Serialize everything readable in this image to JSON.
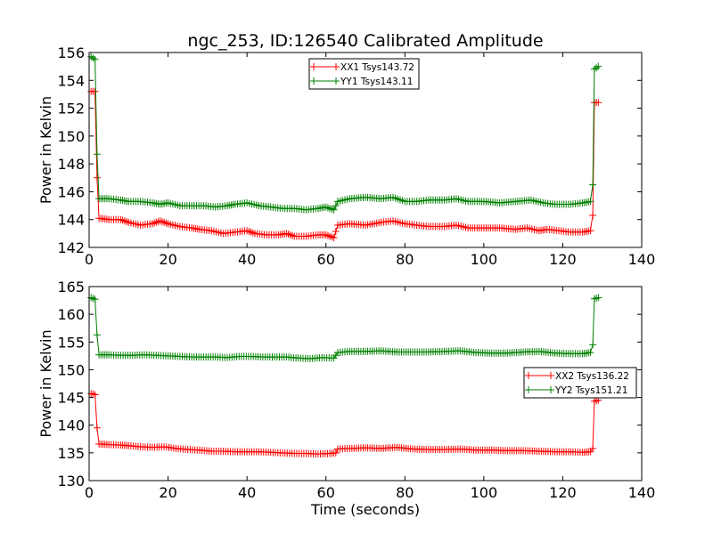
{
  "chart_data": [
    {
      "type": "line",
      "title": "ngc_253, ID:126540 Calibrated Amplitude",
      "xlabel": "",
      "ylabel": "Power in Kelvin",
      "xlim": [
        0,
        140
      ],
      "ylim": [
        142,
        156
      ],
      "xticks": [
        0,
        20,
        40,
        60,
        80,
        100,
        120,
        140
      ],
      "yticks": [
        142,
        144,
        146,
        148,
        150,
        152,
        154,
        156
      ],
      "legend_position": "top-center",
      "grid": false,
      "marker": "+",
      "series": [
        {
          "name": "XX1 Tsys143.72",
          "color": "#ff0000",
          "points": [
            [
              0.5,
              153.2
            ],
            [
              1.5,
              153.2
            ],
            [
              2.0,
              147.0
            ],
            [
              2.5,
              144.1
            ],
            [
              5,
              144.0
            ],
            [
              8,
              144.0
            ],
            [
              10,
              143.8
            ],
            [
              13,
              143.6
            ],
            [
              16,
              143.7
            ],
            [
              18,
              143.9
            ],
            [
              20,
              143.7
            ],
            [
              23,
              143.5
            ],
            [
              26,
              143.4
            ],
            [
              28,
              143.3
            ],
            [
              31,
              143.2
            ],
            [
              34,
              143.0
            ],
            [
              37,
              143.1
            ],
            [
              40,
              143.2
            ],
            [
              42,
              143.0
            ],
            [
              45,
              142.9
            ],
            [
              48,
              142.9
            ],
            [
              50,
              143.0
            ],
            [
              52,
              142.8
            ],
            [
              55,
              142.8
            ],
            [
              58,
              142.9
            ],
            [
              60,
              142.9
            ],
            [
              62,
              142.7
            ],
            [
              63,
              143.6
            ],
            [
              66,
              143.7
            ],
            [
              70,
              143.6
            ],
            [
              74,
              143.8
            ],
            [
              77,
              143.9
            ],
            [
              80,
              143.7
            ],
            [
              83,
              143.6
            ],
            [
              86,
              143.5
            ],
            [
              90,
              143.5
            ],
            [
              93,
              143.6
            ],
            [
              96,
              143.4
            ],
            [
              100,
              143.4
            ],
            [
              104,
              143.4
            ],
            [
              108,
              143.3
            ],
            [
              111,
              143.4
            ],
            [
              114,
              143.2
            ],
            [
              116,
              143.3
            ],
            [
              119,
              143.2
            ],
            [
              122,
              143.1
            ],
            [
              125,
              143.1
            ],
            [
              127,
              143.2
            ],
            [
              127.6,
              144.3
            ],
            [
              128,
              152.4
            ],
            [
              129,
              152.4
            ]
          ]
        },
        {
          "name": "YY1 Tsys143.11",
          "color": "#008000",
          "points": [
            [
              0.5,
              155.7
            ],
            [
              1.5,
              155.5
            ],
            [
              2.0,
              148.7
            ],
            [
              2.5,
              145.5
            ],
            [
              5,
              145.5
            ],
            [
              8,
              145.4
            ],
            [
              10,
              145.3
            ],
            [
              13,
              145.3
            ],
            [
              16,
              145.2
            ],
            [
              18,
              145.1
            ],
            [
              20,
              145.2
            ],
            [
              23,
              145.0
            ],
            [
              26,
              145.0
            ],
            [
              29,
              145.0
            ],
            [
              32,
              144.9
            ],
            [
              35,
              145.0
            ],
            [
              37,
              145.1
            ],
            [
              40,
              145.2
            ],
            [
              43,
              145.0
            ],
            [
              46,
              144.9
            ],
            [
              49,
              144.8
            ],
            [
              52,
              144.8
            ],
            [
              55,
              144.7
            ],
            [
              58,
              144.8
            ],
            [
              60,
              144.9
            ],
            [
              62,
              144.7
            ],
            [
              63,
              145.3
            ],
            [
              66,
              145.5
            ],
            [
              70,
              145.6
            ],
            [
              74,
              145.5
            ],
            [
              77,
              145.6
            ],
            [
              80,
              145.3
            ],
            [
              83,
              145.3
            ],
            [
              86,
              145.4
            ],
            [
              90,
              145.4
            ],
            [
              93,
              145.5
            ],
            [
              96,
              145.3
            ],
            [
              100,
              145.3
            ],
            [
              104,
              145.2
            ],
            [
              108,
              145.3
            ],
            [
              112,
              145.4
            ],
            [
              115,
              145.2
            ],
            [
              118,
              145.1
            ],
            [
              122,
              145.1
            ],
            [
              125,
              145.2
            ],
            [
              127,
              145.3
            ],
            [
              127.6,
              146.5
            ],
            [
              128,
              154.8
            ],
            [
              129,
              155.0
            ]
          ]
        }
      ]
    },
    {
      "type": "line",
      "title": "",
      "xlabel": "Time (seconds)",
      "ylabel": "Power in Kelvin",
      "xlim": [
        0,
        140
      ],
      "ylim": [
        130,
        165
      ],
      "xticks": [
        0,
        20,
        40,
        60,
        80,
        100,
        120,
        140
      ],
      "yticks": [
        130,
        135,
        140,
        145,
        150,
        155,
        160,
        165
      ],
      "legend_position": "center-right",
      "grid": false,
      "marker": "+",
      "series": [
        {
          "name": "XX2 Tsys136.22",
          "color": "#ff0000",
          "points": [
            [
              0.5,
              145.7
            ],
            [
              1.5,
              145.5
            ],
            [
              2.0,
              139.5
            ],
            [
              2.5,
              136.6
            ],
            [
              5,
              136.5
            ],
            [
              8,
              136.4
            ],
            [
              10,
              136.3
            ],
            [
              13,
              136.1
            ],
            [
              16,
              136.0
            ],
            [
              19,
              136.1
            ],
            [
              22,
              135.8
            ],
            [
              25,
              135.6
            ],
            [
              28,
              135.5
            ],
            [
              31,
              135.3
            ],
            [
              34,
              135.3
            ],
            [
              37,
              135.2
            ],
            [
              40,
              135.2
            ],
            [
              43,
              135.2
            ],
            [
              46,
              135.1
            ],
            [
              49,
              135.0
            ],
            [
              52,
              134.9
            ],
            [
              55,
              134.9
            ],
            [
              58,
              134.8
            ],
            [
              61,
              134.9
            ],
            [
              62.5,
              135.0
            ],
            [
              63,
              135.7
            ],
            [
              66,
              135.8
            ],
            [
              70,
              135.9
            ],
            [
              74,
              135.8
            ],
            [
              78,
              136.0
            ],
            [
              82,
              135.7
            ],
            [
              86,
              135.6
            ],
            [
              90,
              135.6
            ],
            [
              94,
              135.7
            ],
            [
              98,
              135.5
            ],
            [
              102,
              135.5
            ],
            [
              106,
              135.4
            ],
            [
              110,
              135.4
            ],
            [
              114,
              135.3
            ],
            [
              118,
              135.2
            ],
            [
              122,
              135.2
            ],
            [
              125,
              135.1
            ],
            [
              127,
              135.2
            ],
            [
              127.6,
              135.8
            ],
            [
              128,
              144.3
            ],
            [
              129,
              144.5
            ]
          ]
        },
        {
          "name": "YY2 Tsys151.21",
          "color": "#008000",
          "points": [
            [
              0.5,
              163.0
            ],
            [
              1.5,
              162.7
            ],
            [
              2.0,
              156.3
            ],
            [
              2.5,
              152.7
            ],
            [
              5,
              152.7
            ],
            [
              8,
              152.6
            ],
            [
              11,
              152.6
            ],
            [
              14,
              152.7
            ],
            [
              17,
              152.6
            ],
            [
              20,
              152.5
            ],
            [
              23,
              152.4
            ],
            [
              26,
              152.3
            ],
            [
              29,
              152.3
            ],
            [
              32,
              152.3
            ],
            [
              35,
              152.2
            ],
            [
              38,
              152.4
            ],
            [
              41,
              152.4
            ],
            [
              44,
              152.3
            ],
            [
              47,
              152.3
            ],
            [
              50,
              152.3
            ],
            [
              53,
              152.1
            ],
            [
              56,
              152.0
            ],
            [
              59,
              152.2
            ],
            [
              62,
              152.1
            ],
            [
              63,
              153.1
            ],
            [
              66,
              153.3
            ],
            [
              70,
              153.3
            ],
            [
              74,
              153.4
            ],
            [
              78,
              153.2
            ],
            [
              82,
              153.2
            ],
            [
              86,
              153.2
            ],
            [
              90,
              153.3
            ],
            [
              94,
              153.4
            ],
            [
              98,
              153.1
            ],
            [
              102,
              153.0
            ],
            [
              106,
              153.0
            ],
            [
              110,
              153.2
            ],
            [
              114,
              153.3
            ],
            [
              118,
              153.0
            ],
            [
              122,
              152.9
            ],
            [
              125,
              152.9
            ],
            [
              127,
              153.1
            ],
            [
              127.6,
              154.5
            ],
            [
              128,
              162.8
            ],
            [
              129,
              163.0
            ]
          ]
        }
      ]
    }
  ]
}
